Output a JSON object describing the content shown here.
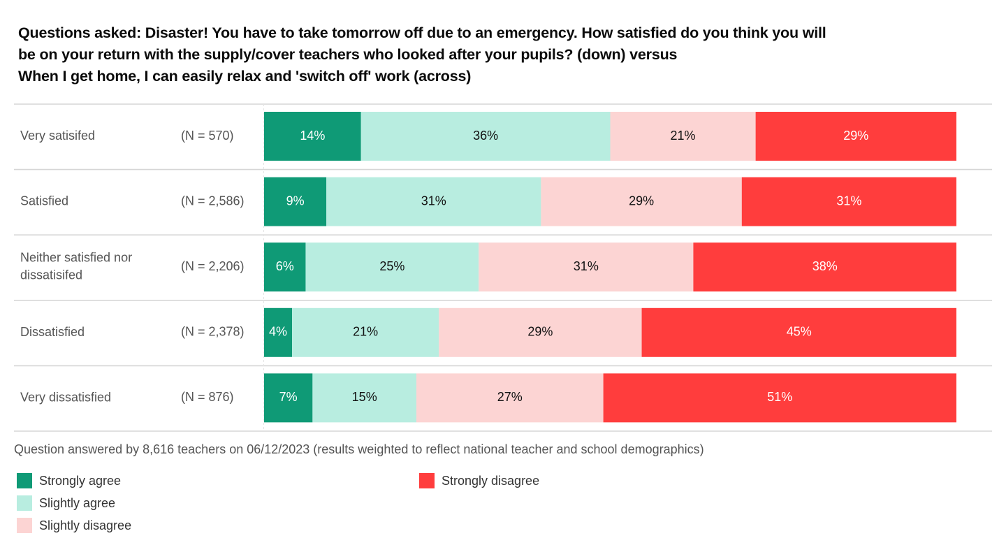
{
  "chart_data": {
    "type": "bar",
    "orientation": "horizontal",
    "stacked": true,
    "percent_stacked": true,
    "title_lines": [
      "Questions asked: Disaster! You have to take tomorrow off due to an emergency. How satisfied do you think you will",
      "be on your return with the supply/cover teachers who looked after your pupils? (down) versus",
      "When I get home, I can easily relax and 'switch off' work (across)"
    ],
    "categories": [
      "Very satisifed",
      "Satisfied",
      "Neither satisfied nor dissatisifed",
      "Dissatisfied",
      "Very dissatisfied"
    ],
    "category_label_lines": [
      [
        "Very satisifed"
      ],
      [
        "Satisfied"
      ],
      [
        "Neither satisfied nor",
        "dissatisifed"
      ],
      [
        "Dissatisfied"
      ],
      [
        "Very dissatisfied"
      ]
    ],
    "sample_sizes": [
      "(N = 570)",
      "(N = 2,586)",
      "(N = 2,206)",
      "(N = 2,378)",
      "(N = 876)"
    ],
    "series": [
      {
        "name": "Strongly agree",
        "color": "#0f9a76",
        "label_color": "#ffffff",
        "values": [
          14,
          9,
          6,
          4,
          7
        ]
      },
      {
        "name": "Slightly agree",
        "color": "#b8ede0",
        "label_color": "#111111",
        "values": [
          36,
          31,
          25,
          21,
          15
        ]
      },
      {
        "name": "Slightly disagree",
        "color": "#fcd4d3",
        "label_color": "#111111",
        "values": [
          21,
          29,
          31,
          29,
          27
        ]
      },
      {
        "name": "Strongly disagree",
        "color": "#ff3d3d",
        "label_color": "#ffffff",
        "values": [
          29,
          31,
          38,
          45,
          51
        ]
      }
    ],
    "value_suffix": "%",
    "xlim": [
      0,
      100
    ],
    "xlabel": "",
    "ylabel": "",
    "grid": false,
    "legend_position": "bottom-left"
  },
  "footnote": "Question answered by 8,616 teachers on 06/12/2023 (results weighted to reflect national teacher and school demographics)",
  "legend": [
    {
      "label": "Strongly agree",
      "color": "#0f9a76"
    },
    {
      "label": "Slightly agree",
      "color": "#b8ede0"
    },
    {
      "label": "Slightly disagree",
      "color": "#fcd4d3"
    },
    {
      "label": "Strongly disagree",
      "color": "#ff3d3d"
    }
  ]
}
